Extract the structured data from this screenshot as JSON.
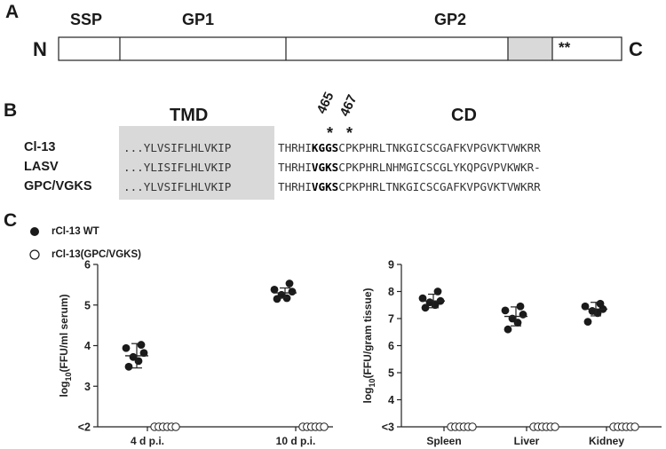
{
  "panel_a": {
    "letter": "A",
    "n_label": "N",
    "c_label": "C",
    "domains": [
      "SSP",
      "GP1",
      "GP2"
    ],
    "stars": "**"
  },
  "panel_b": {
    "letter": "B",
    "tmd_label": "TMD",
    "cd_label": "CD",
    "pos1": "465",
    "pos2": "467",
    "star": "*",
    "rows": [
      {
        "name": "Cl-13",
        "tmd": "...YLVSIFLHLVKIP",
        "pre": "THRHI",
        "motif": "KGGS",
        "post": "CPKPHRLTNKGICSCGAFKVPGVKTVWKRR"
      },
      {
        "name": "LASV",
        "tmd": "...YLISIFLHLVKIP",
        "pre": "THRHI",
        "motif": "VGKS",
        "post": "CPKPHRLNHMGICSCGLYKQPGVPVKWKR-"
      },
      {
        "name": "GPC/VGKS",
        "tmd": "...YLVSIFLHLVKIP",
        "pre": "THRHI",
        "motif": "VGKS",
        "post": "CPKPHRLTNKGICSCGAFKVPGVKTVWKRR"
      }
    ]
  },
  "panel_c": {
    "letter": "C",
    "legend": [
      {
        "label": "rCl-13 WT",
        "filled": true
      },
      {
        "label": "rCl-13(GPC/VGKS)",
        "filled": false
      }
    ]
  },
  "chart_data": [
    {
      "type": "scatter",
      "ylabel": "log10(FFU/ml serum)",
      "ylim": [
        2,
        6
      ],
      "yticks": [
        "<2",
        "3",
        "4",
        "5",
        "6"
      ],
      "categories": [
        "4 d p.i.",
        "10 d p.i."
      ],
      "series": [
        {
          "name": "rCl-13 WT",
          "filled": true,
          "points": [
            [
              [
                3.48,
                3.62,
                3.72,
                3.82,
                3.94,
                4.02
              ],
              [
                3.75,
                0.3
              ]
            ],
            [
              [
                5.15,
                5.17,
                5.25,
                5.33,
                5.38,
                5.53
              ],
              [
                5.3,
                0.12
              ]
            ]
          ]
        },
        {
          "name": "rCl-13(GPC/VGKS)",
          "filled": false,
          "points": [
            [
              [
                2,
                2,
                2,
                2,
                2,
                2
              ],
              null
            ],
            [
              [
                2,
                2,
                2,
                2,
                2,
                2
              ],
              null
            ]
          ]
        }
      ]
    },
    {
      "type": "scatter",
      "ylabel": "log10(FFU/gram tissue)",
      "ylim": [
        3,
        9
      ],
      "yticks": [
        "<3",
        "4",
        "5",
        "6",
        "7",
        "8",
        "9"
      ],
      "categories": [
        "Spleen",
        "Liver",
        "Kidney"
      ],
      "series": [
        {
          "name": "rCl-13 WT",
          "filled": true,
          "points": [
            [
              [
                7.4,
                7.5,
                7.6,
                7.65,
                7.75,
                8.0
              ],
              [
                7.65,
                0.25
              ]
            ],
            [
              [
                6.6,
                6.85,
                7.0,
                7.15,
                7.3,
                7.45
              ],
              [
                7.08,
                0.35
              ]
            ],
            [
              [
                6.88,
                7.2,
                7.28,
                7.35,
                7.45,
                7.55
              ],
              [
                7.35,
                0.25
              ]
            ]
          ]
        },
        {
          "name": "rCl-13(GPC/VGKS)",
          "filled": false,
          "points": [
            [
              [
                3,
                3,
                3,
                3,
                3,
                3
              ],
              null
            ],
            [
              [
                3,
                3,
                3,
                3,
                3,
                3
              ],
              null
            ],
            [
              [
                3,
                3,
                3,
                3,
                3,
                3
              ],
              null
            ]
          ]
        }
      ]
    }
  ]
}
